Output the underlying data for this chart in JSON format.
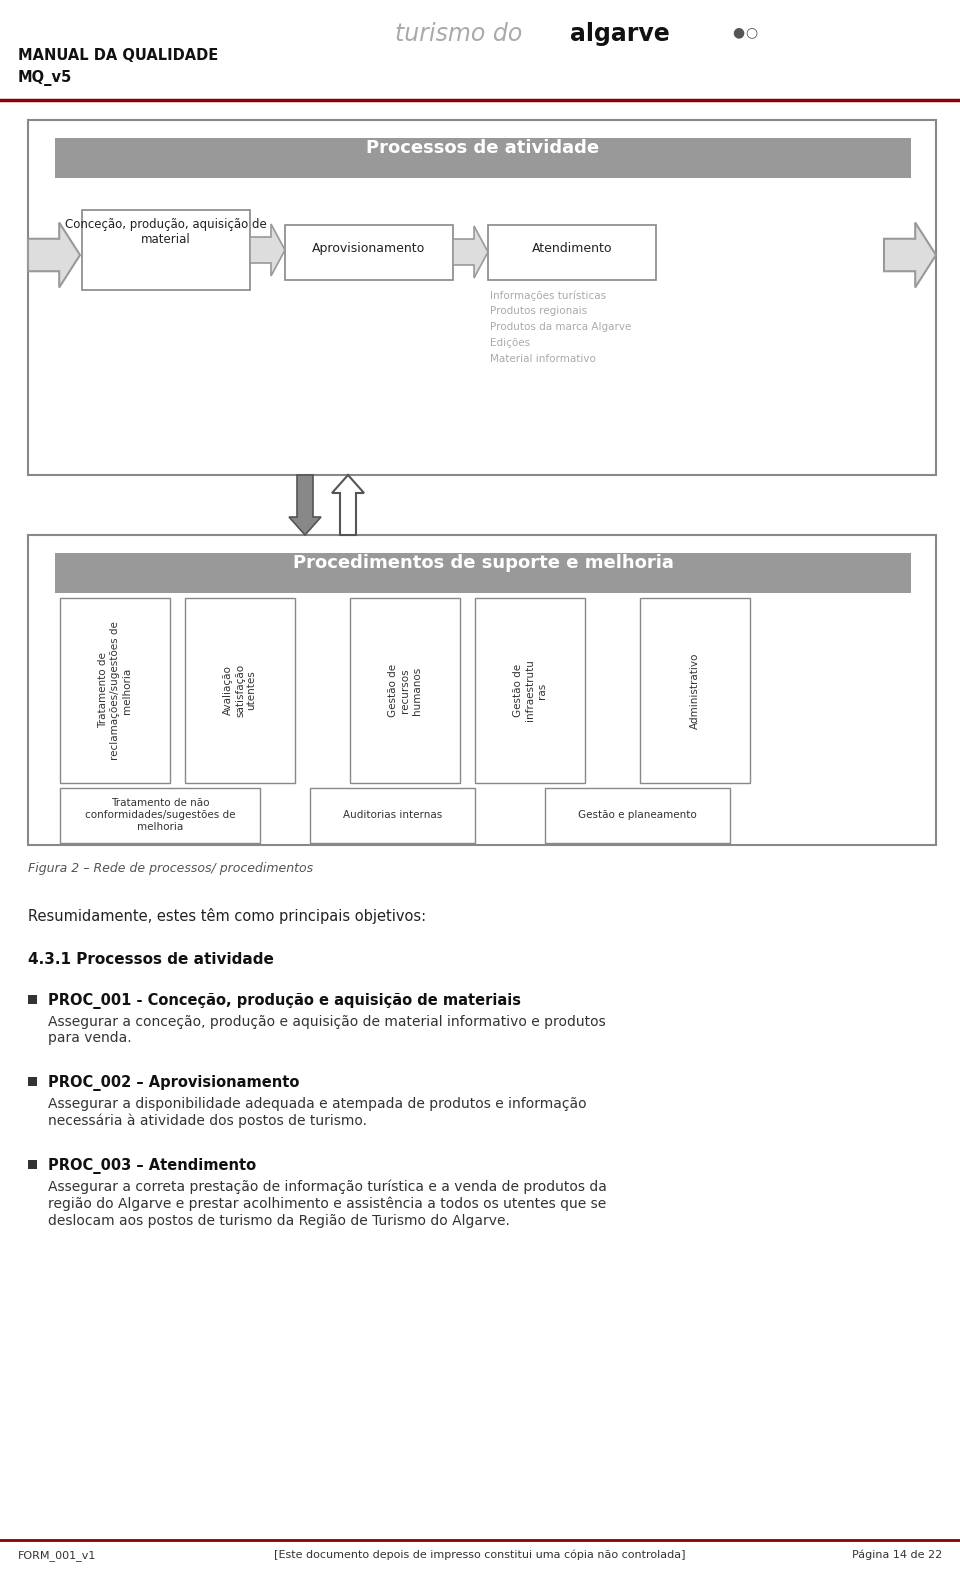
{
  "title_header": "MANUAL DA QUALIDADE",
  "subtitle_header": "MQ_v5",
  "logo_text1": "turismo do ",
  "logo_text2": "algarve",
  "logo_symbols": "●○",
  "header_line_color": "#8B0000",
  "bg_color": "#FFFFFF",
  "proc_ativ_header": "Processos de atividade",
  "proc_ativ_header_bg": "#999999",
  "box1_text": "Conceção, produção, aquisição de\nmaterial",
  "box2_text": "Aprovisionamento",
  "box3_text": "Atendimento",
  "atend_subtext": [
    "Informações turísticas",
    "Produtos regionais",
    "Produtos da marca Algarve",
    "Edições",
    "Material informativo"
  ],
  "proc_suporte_header": "Procedimentos de suporte e melhoria",
  "col_labels": [
    "Tratamento de\nreclamações/sugestões de\nmelhoria",
    "Avaliação\nsatisfação\nutentes",
    "Gestão de\nrecursos\nhumanos",
    "Gestão de\ninfraestrutu\nras",
    "Administrativo"
  ],
  "bottom_boxes": [
    "Tratamento de não\nconformidades/sugestões de\nmelhoria",
    "Auditorias internas",
    "Gestão e planeamento"
  ],
  "figura_text": "Figura 2 – Rede de processos/ procedimentos",
  "resumo_text": "Resumidamente, estes têm como principais objetivos:",
  "section_title": "4.3.1 Processos de atividade",
  "bullet1_title": "PROC_001 - Conceção, produção e aquisição de materiais",
  "bullet1_body": "Assegurar a conceção, produção e aquisição de material informativo e produtos\npara venda.",
  "bullet2_title": "PROC_002 – Aprovisionamento",
  "bullet2_body": "Assegurar a disponibilidade adequada e atempada de produtos e informação\nnecessária à atividade dos postos de turismo.",
  "bullet3_title": "PROC_003 – Atendimento",
  "bullet3_body": "Assegurar a correta prestação de informação turística e a venda de produtos da\nregião do Algarve e prestar acolhimento e assistência a todos os utentes que se\ndeslocam aos postos de turismo da Região de Turismo do Algarve.",
  "footer_left": "FORM_001_v1",
  "footer_center": "[Este documento depois de impresso constitui uma cópia não controlada]",
  "footer_right": "Página 14 de 22",
  "footer_line_color": "#8B0000"
}
